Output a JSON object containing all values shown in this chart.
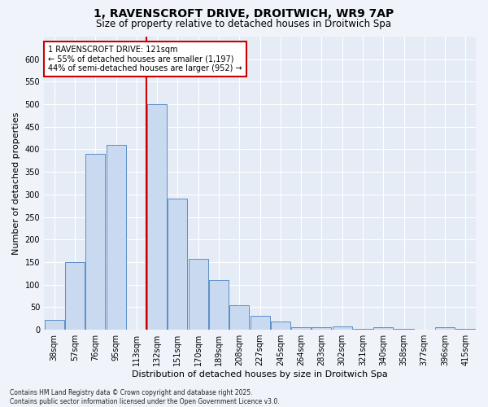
{
  "title1": "1, RAVENSCROFT DRIVE, DROITWICH, WR9 7AP",
  "title2": "Size of property relative to detached houses in Droitwich Spa",
  "xlabel": "Distribution of detached houses by size in Droitwich Spa",
  "ylabel": "Number of detached properties",
  "categories": [
    "38sqm",
    "57sqm",
    "76sqm",
    "95sqm",
    "113sqm",
    "132sqm",
    "151sqm",
    "170sqm",
    "189sqm",
    "208sqm",
    "227sqm",
    "245sqm",
    "264sqm",
    "283sqm",
    "302sqm",
    "321sqm",
    "340sqm",
    "358sqm",
    "377sqm",
    "396sqm",
    "415sqm"
  ],
  "values": [
    22,
    150,
    390,
    410,
    0,
    500,
    290,
    158,
    110,
    55,
    30,
    18,
    5,
    5,
    8,
    2,
    5,
    2,
    0,
    5,
    2
  ],
  "bar_color": "#c9daf0",
  "bar_edge_color": "#5b8dc8",
  "vline_color": "#cc0000",
  "annotation_text": "1 RAVENSCROFT DRIVE: 121sqm\n← 55% of detached houses are smaller (1,197)\n44% of semi-detached houses are larger (952) →",
  "annotation_box_facecolor": "#ffffff",
  "annotation_box_edgecolor": "#cc0000",
  "ylim": [
    0,
    650
  ],
  "yticks": [
    0,
    50,
    100,
    150,
    200,
    250,
    300,
    350,
    400,
    450,
    500,
    550,
    600
  ],
  "fig_facecolor": "#f0f4fa",
  "axes_facecolor": "#e6ecf5",
  "grid_color": "#ffffff",
  "footer": "Contains HM Land Registry data © Crown copyright and database right 2025.\nContains public sector information licensed under the Open Government Licence v3.0.",
  "title1_fontsize": 10,
  "title2_fontsize": 8.5,
  "tick_fontsize": 7,
  "label_fontsize": 8,
  "annot_fontsize": 7,
  "footer_fontsize": 5.5
}
